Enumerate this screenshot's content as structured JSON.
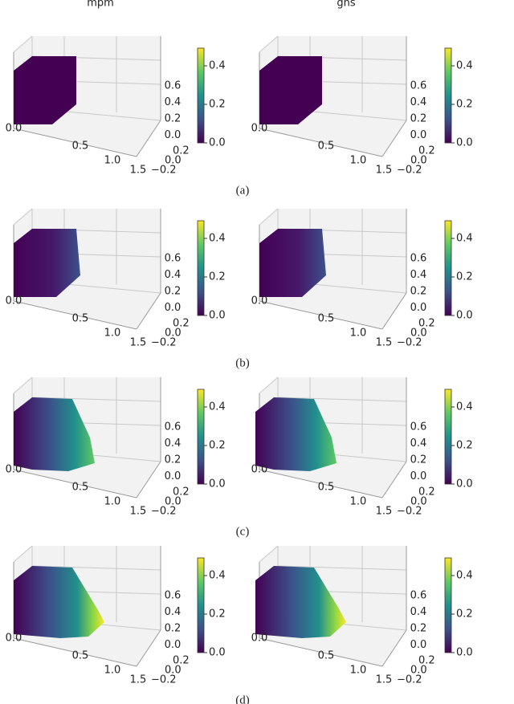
{
  "columns": [
    "mpm",
    "gns"
  ],
  "panels": [
    {
      "caption": "(a)"
    },
    {
      "caption": "(b)"
    },
    {
      "caption": "(c)"
    },
    {
      "caption": "(d)"
    }
  ],
  "axis_ticks": {
    "x": [
      "0.0",
      "0.5",
      "1.0",
      "1.5"
    ],
    "y": [
      "0.2",
      "0.0",
      "−0.2"
    ],
    "z": [
      "0.6",
      "0.4",
      "0.2",
      "0.0"
    ]
  },
  "colorbar_ticks": [
    "0.4",
    "0.2",
    "0.0"
  ]
}
